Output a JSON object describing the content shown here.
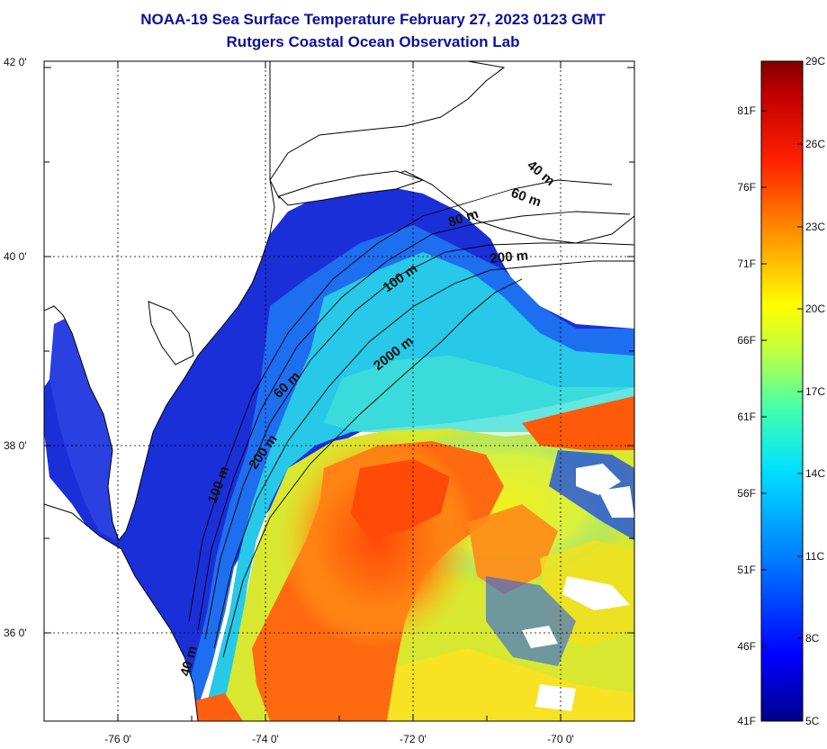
{
  "title": "NOAA-19 Sea Surface Temperature February 27, 2023 0123 GMT",
  "subtitle": "Rutgers Coastal Ocean Observation Lab",
  "map": {
    "lat_labels": [
      "42 0'",
      "40 0'",
      "38 0'",
      "36 0'"
    ],
    "lon_labels": [
      "-76 0'",
      "-74 0'",
      "-72 0'",
      "-70 0'"
    ],
    "lat_range": [
      35,
      42
    ],
    "lon_range": [
      -77,
      -69
    ],
    "contour_labels": [
      "40 m",
      "60 m",
      "80 m",
      "200 m",
      "100 m",
      "2000 m",
      "60 m",
      "200 m",
      "100 m",
      "40 m"
    ],
    "colors": {
      "land": "#ffffff",
      "cold": "#1a2fd8",
      "cool": "#1e90ff",
      "mid": "#24d8e0",
      "warm": "#e8e020",
      "hot": "#ff5a0a",
      "very_hot": "#e81810"
    }
  },
  "colorbar": {
    "celsius_labels": [
      "29C",
      "26C",
      "23C",
      "20C",
      "17C",
      "14C",
      "11C",
      "8C",
      "5C"
    ],
    "fahrenheit_labels": [
      "81F",
      "76F",
      "71F",
      "66F",
      "61F",
      "56F",
      "51F",
      "46F",
      "41F"
    ],
    "celsius_range": [
      5,
      29
    ],
    "gradient": [
      "#00008a",
      "#0000ff",
      "#0080ff",
      "#00e0ff",
      "#40ffb0",
      "#c0ff40",
      "#ffff00",
      "#ff9000",
      "#ff2000",
      "#c00000",
      "#800000"
    ]
  }
}
